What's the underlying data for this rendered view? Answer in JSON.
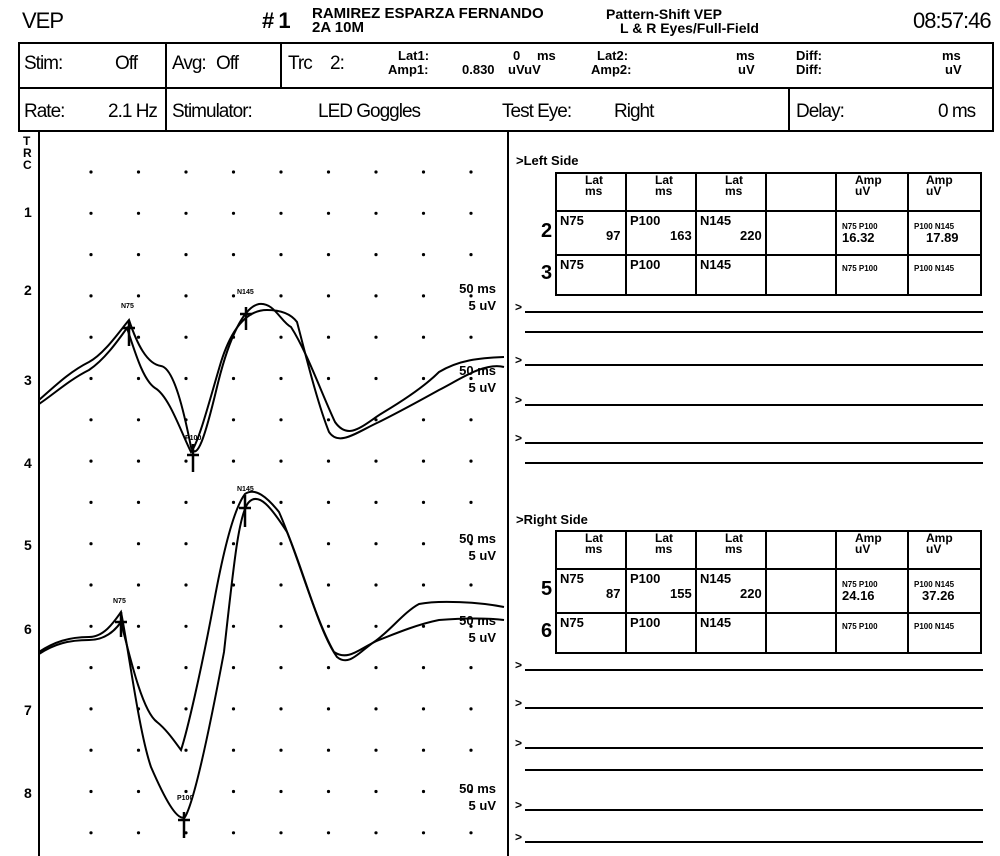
{
  "header": {
    "mode": "VEP",
    "record": "# 1",
    "patient_name": "RAMIREZ ESPARZA FERNANDO",
    "patient_info": "2A 10M",
    "test_name": "Pattern-Shift VEP",
    "test_detail": "L & R Eyes/Full-Field",
    "time": "08:57:46"
  },
  "settings_row1": {
    "stim_label": "Stim:",
    "stim_value": "Off",
    "avg_label": "Avg:",
    "avg_value": "Off",
    "trc_label": "Trc",
    "trc_value": "2:",
    "lat1_label": "Lat1:",
    "lat1_value": "0",
    "lat1_unit": "ms",
    "amp1_label": "Amp1:",
    "amp1_value": "0.830",
    "amp1_unit": "uVuV",
    "lat2_label": "Lat2:",
    "lat2_unit": "ms",
    "amp2_label": "Amp2:",
    "amp2_unit": "uV",
    "diff_label": "Diff:",
    "diff_unit_ms": "ms",
    "diff_unit_uv": "uV"
  },
  "settings_row2": {
    "rate_label": "Rate:",
    "rate_value": "2.1 Hz",
    "stimulator_label": "Stimulator:",
    "stimulator_value": "LED Goggles",
    "test_eye_label": "Test Eye:",
    "test_eye_value": "Right",
    "delay_label": "Delay:",
    "delay_value": "0 ms"
  },
  "left_column_letters": [
    "T",
    "R",
    "C"
  ],
  "channels": [
    "1",
    "2",
    "3",
    "4",
    "5",
    "6",
    "7",
    "8"
  ],
  "scale_labels": [
    {
      "ms": "50 ms",
      "uv": "5 uV"
    },
    {
      "ms": "50 ms",
      "uv": "5 uV"
    },
    {
      "ms": "50 ms",
      "uv": "5 uV"
    },
    {
      "ms": "50 ms",
      "uv": "5 uV"
    },
    {
      "ms": "50 ms",
      "uv": "5 uV"
    }
  ],
  "peak_markers": {
    "upper_n75": "N75",
    "upper_n145": "N145",
    "upper_p100": "P100",
    "lower_n75": "N75",
    "lower_n145": "N145",
    "lower_p100": "P100"
  },
  "left_side": {
    "title": ">Left Side",
    "headers": [
      {
        "top": "Lat",
        "bottom": "ms"
      },
      {
        "top": "Lat",
        "bottom": "ms"
      },
      {
        "top": "Lat",
        "bottom": "ms"
      },
      {
        "top": "",
        "bottom": ""
      },
      {
        "top": "Amp",
        "bottom": "uV"
      },
      {
        "top": "Amp",
        "bottom": "uV"
      }
    ],
    "rows": [
      {
        "index": "2",
        "c1": "N75",
        "v1": "97",
        "c2": "P100",
        "v2": "163",
        "c3": "N145",
        "v3": "220",
        "a1_label": "N75 P100",
        "a1": "16.32",
        "a2_label": "P100 N145",
        "a2": "17.89"
      },
      {
        "index": "3",
        "c1": "N75",
        "v1": "",
        "c2": "P100",
        "v2": "",
        "c3": "N145",
        "v3": "",
        "a1_label": "N75 P100",
        "a1": "",
        "a2_label": "P100 N145",
        "a2": ""
      }
    ]
  },
  "right_side": {
    "title": ">Right Side",
    "headers": [
      {
        "top": "Lat",
        "bottom": "ms"
      },
      {
        "top": "Lat",
        "bottom": "ms"
      },
      {
        "top": "Lat",
        "bottom": "ms"
      },
      {
        "top": "",
        "bottom": ""
      },
      {
        "top": "Amp",
        "bottom": "uV"
      },
      {
        "top": "Amp",
        "bottom": "uV"
      }
    ],
    "rows": [
      {
        "index": "5",
        "c1": "N75",
        "v1": "87",
        "c2": "P100",
        "v2": "155",
        "c3": "N145",
        "v3": "220",
        "a1_label": "N75 P100",
        "a1": "24.16",
        "a2_label": "P100 N145",
        "a2": "37.26"
      },
      {
        "index": "6",
        "c1": "N75",
        "v1": "",
        "c2": "P100",
        "v2": "",
        "c3": "N145",
        "v3": "",
        "a1_label": "N75 P100",
        "a1": "",
        "a2_label": "P100 N145",
        "a2": ""
      }
    ]
  },
  "prompt_marker": ">",
  "colors": {
    "ink": "#000000",
    "paper": "#ffffff"
  }
}
